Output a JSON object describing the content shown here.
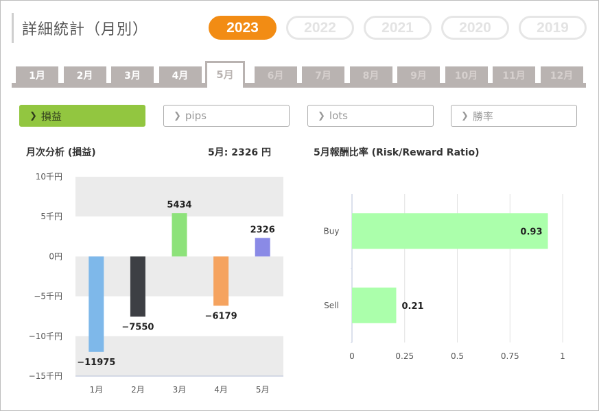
{
  "header": {
    "title": "詳細統計（月別）"
  },
  "years": [
    "2023",
    "2022",
    "2021",
    "2020",
    "2019"
  ],
  "active_year": "2023",
  "months": [
    "1月",
    "2月",
    "3月",
    "4月",
    "5月",
    "6月",
    "7月",
    "8月",
    "9月",
    "10月",
    "11月",
    "12月"
  ],
  "active_month_index": 4,
  "enabled_months": 5,
  "metrics": [
    "損益",
    "pips",
    "lots",
    "勝率"
  ],
  "active_metric_index": 0,
  "monthly": {
    "title": "月次分析 (損益)",
    "summary": "5月:  2326 円"
  },
  "rr": {
    "title": "5月報酬比率 (Risk/Reward Ratio)"
  },
  "chart_data": [
    {
      "type": "bar",
      "title": "月次分析 (損益)",
      "categories": [
        "1月",
        "2月",
        "3月",
        "4月",
        "5月"
      ],
      "values": [
        -11975,
        -7550,
        5434,
        -6179,
        2326
      ],
      "colors": [
        "#7eb8ea",
        "#3d3f44",
        "#8de27a",
        "#f5a35f",
        "#8a8ae6"
      ],
      "ylim": [
        -15000,
        10000
      ],
      "yticks": [
        10000,
        5000,
        0,
        -5000,
        -10000,
        -15000
      ],
      "ytick_labels": [
        "10千円",
        "5千円",
        "0円",
        "−5千円",
        "−10千円",
        "−15千円"
      ],
      "data_labels": [
        "−11975",
        "−7550",
        "5434",
        "−6179",
        "2326"
      ],
      "grid": "alternating bands"
    },
    {
      "type": "bar",
      "orientation": "horizontal",
      "title": "5月報酬比率 (Risk/Reward Ratio)",
      "categories": [
        "Buy",
        "Sell"
      ],
      "values": [
        0.93,
        0.21
      ],
      "data_labels": [
        "0.93",
        "0.21"
      ],
      "color": "#abffab",
      "xlim": [
        0,
        1
      ],
      "xticks": [
        0,
        0.25,
        0.5,
        0.75,
        1
      ],
      "xtick_labels": [
        "0",
        "0.25",
        "0.5",
        "0.75",
        "1"
      ],
      "grid": "vertical"
    }
  ]
}
